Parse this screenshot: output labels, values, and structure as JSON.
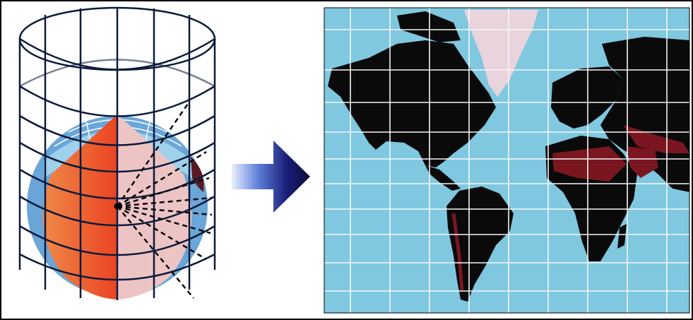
{
  "colors": {
    "ocean": "#7fc8e0",
    "land": "#0a0a0a",
    "land_shade": "#7a1620",
    "ice": "#e9d3dc",
    "grid": "#f6f6f6",
    "frame": "#000000",
    "cylinder_stroke": "#0b1a3c",
    "globe_left": "#ee5a2e",
    "globe_right": "#edc4c4",
    "globe_blue": "#6aa6d8",
    "arrow_dark": "#12125a",
    "arrow_light": "#d9e4ff"
  },
  "figure": {
    "left": "cylinder-projection-diagram",
    "center": "right-arrow-icon",
    "right": "mercator-world-map"
  }
}
